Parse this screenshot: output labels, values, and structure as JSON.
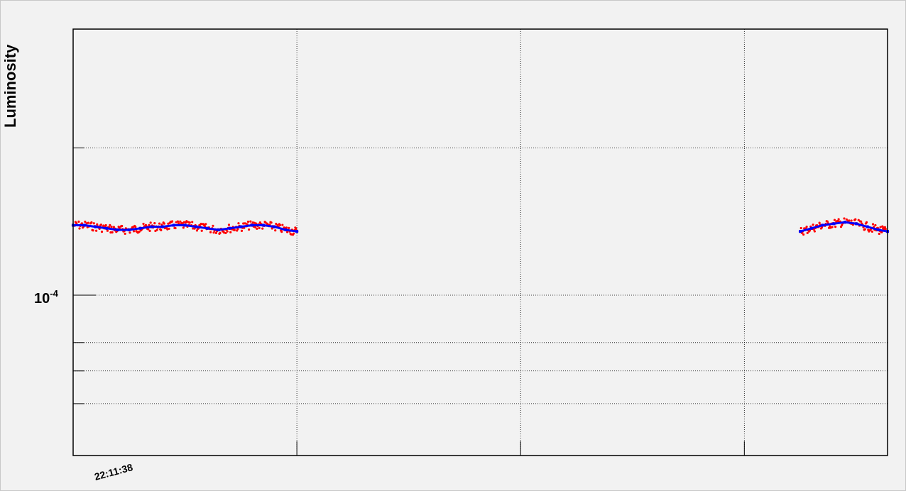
{
  "chart_data": {
    "type": "scatter",
    "title": "",
    "ylabel": "Luminosity",
    "xlabel": "",
    "yscale": "log",
    "ylim": [
      4.7e-05,
      0.00035
    ],
    "grid": true,
    "legend": "none",
    "y_tick_labels": [
      {
        "value": 0.0001,
        "base": "10",
        "exponent": "-4"
      }
    ],
    "x_tick_labels": [
      {
        "x": 0.1,
        "label": "22:11:38"
      }
    ],
    "xlim": [
      0,
      3.64
    ],
    "x_major_ticks": [
      0,
      1,
      2,
      3
    ],
    "y_minor_ticks": [
      6e-05,
      7e-05,
      8e-05,
      0.0001,
      0.0002
    ],
    "series": [
      {
        "color": "#ff0000",
        "kind": "points",
        "segments": [
          {
            "x": [
              0.0,
              0.05,
              0.1,
              0.15,
              0.2,
              0.25,
              0.3,
              0.35,
              0.4,
              0.45,
              0.5,
              0.55,
              0.6,
              0.65,
              0.7,
              0.75,
              0.8,
              0.85,
              0.9,
              0.95,
              1.0
            ],
            "y": [
              0.000139,
              0.000139,
              0.000138,
              0.000137,
              0.000136,
              0.000136,
              0.000137,
              0.000138,
              0.000138,
              0.000139,
              0.000139,
              0.000138,
              0.000137,
              0.000136,
              0.000137,
              0.000138,
              0.000139,
              0.000139,
              0.000138,
              0.000136,
              0.000135
            ]
          },
          {
            "x": [
              3.25,
              3.3,
              3.35,
              3.4,
              3.45,
              3.5,
              3.55,
              3.6,
              3.64
            ],
            "y": [
              0.000135,
              0.000137,
              0.000139,
              0.00014,
              0.000141,
              0.00014,
              0.000138,
              0.000136,
              0.000135
            ]
          }
        ]
      },
      {
        "color": "#0000ff",
        "kind": "line",
        "segments": [
          {
            "x": [
              0.0,
              0.05,
              0.1,
              0.15,
              0.2,
              0.25,
              0.3,
              0.35,
              0.4,
              0.45,
              0.5,
              0.55,
              0.6,
              0.65,
              0.7,
              0.75,
              0.8,
              0.85,
              0.9,
              0.95,
              1.0
            ],
            "y": [
              0.000139,
              0.000139,
              0.000138,
              0.000137,
              0.000136,
              0.000136,
              0.000137,
              0.000138,
              0.000138,
              0.000139,
              0.000139,
              0.000138,
              0.000137,
              0.000136,
              0.000137,
              0.000138,
              0.000139,
              0.000139,
              0.000138,
              0.000136,
              0.000135
            ]
          },
          {
            "x": [
              3.25,
              3.3,
              3.35,
              3.4,
              3.45,
              3.5,
              3.55,
              3.6,
              3.64
            ],
            "y": [
              0.000135,
              0.000137,
              0.000139,
              0.00014,
              0.000141,
              0.00014,
              0.000138,
              0.000136,
              0.000135
            ]
          }
        ]
      }
    ]
  }
}
